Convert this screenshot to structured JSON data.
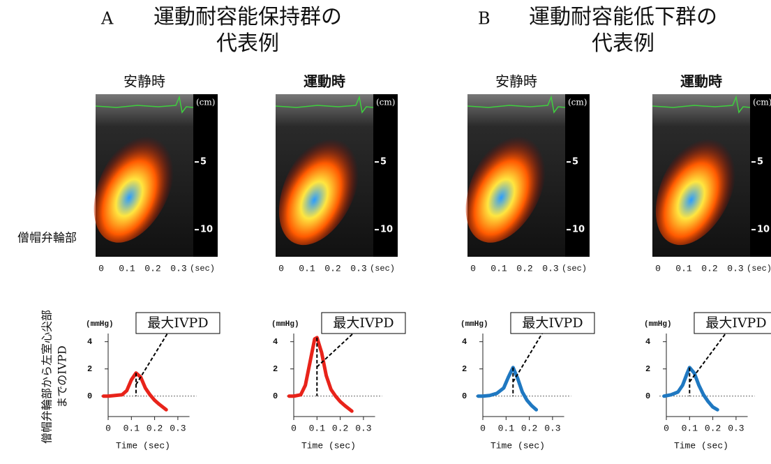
{
  "groups": [
    {
      "letter": "A",
      "title": "運動耐容能保持群の",
      "title2": "代表例"
    },
    {
      "letter": "B",
      "title": "運動耐容能低下群の",
      "title2": "代表例"
    }
  ],
  "row_label": "僧帽弁輪部",
  "side_label": [
    "僧帽弁輪部から左室心尖部",
    "までのIVPD"
  ],
  "panels": [
    {
      "label": "安静時",
      "depth_unit": "(cm)",
      "depth_ticks": [
        5,
        10
      ],
      "time_ticks": [
        0,
        0.1,
        0.2,
        0.3
      ],
      "time_unit": "(sec)"
    },
    {
      "label": "運動時",
      "depth_unit": "(cm)",
      "depth_ticks": [
        5,
        10
      ],
      "time_ticks": [
        0,
        0.1,
        0.2,
        0.3
      ],
      "time_unit": "(sec)"
    },
    {
      "label": "安静時",
      "depth_unit": "(cm)",
      "depth_ticks": [
        5,
        10
      ],
      "time_ticks": [
        0,
        0.1,
        0.2,
        0.3
      ],
      "time_unit": "(sec)"
    },
    {
      "label": "運動時",
      "depth_unit": "(cm)",
      "depth_ticks": [
        5,
        10
      ],
      "time_ticks": [
        0,
        0.1,
        0.2,
        0.3
      ],
      "time_unit": "(sec)"
    }
  ],
  "chart_data": [
    {
      "type": "line",
      "y_unit": "(mmHg)",
      "annotation": "最大IVPD",
      "xlabel": "Time (sec)",
      "x": [
        -0.02,
        0,
        0.03,
        0.06,
        0.08,
        0.1,
        0.12,
        0.14,
        0.16,
        0.18,
        0.2,
        0.22,
        0.25
      ],
      "series": [
        {
          "color": "#e8231a",
          "values": [
            0,
            0,
            0.05,
            0.1,
            0.4,
            1.2,
            1.7,
            1.4,
            0.6,
            0.1,
            -0.3,
            -0.6,
            -1.0
          ]
        }
      ],
      "xlim": [
        -0.03,
        0.38
      ],
      "ylim": [
        -1.5,
        4.6
      ],
      "xticks": [
        0,
        0.1,
        0.2,
        0.3
      ],
      "yticks": [
        0,
        2,
        4
      ]
    },
    {
      "type": "line",
      "y_unit": "(mmHg)",
      "annotation": "最大IVPD",
      "xlabel": "Time (sec)",
      "x": [
        -0.02,
        0,
        0.03,
        0.05,
        0.07,
        0.09,
        0.1,
        0.12,
        0.14,
        0.16,
        0.18,
        0.2,
        0.22,
        0.25
      ],
      "series": [
        {
          "color": "#e8231a",
          "values": [
            0,
            0,
            0.1,
            0.8,
            2.5,
            4.2,
            4.3,
            3.2,
            1.5,
            0.5,
            0,
            -0.4,
            -0.7,
            -1.1
          ]
        }
      ],
      "xlim": [
        -0.03,
        0.38
      ],
      "ylim": [
        -1.5,
        4.6
      ],
      "xticks": [
        0,
        0.1,
        0.2,
        0.3
      ],
      "yticks": [
        0,
        2,
        4
      ]
    },
    {
      "type": "line",
      "y_unit": "(mmHg)",
      "annotation": "最大IVPD",
      "xlabel": "Time (sec)",
      "x": [
        -0.02,
        0,
        0.03,
        0.06,
        0.09,
        0.11,
        0.13,
        0.15,
        0.17,
        0.19,
        0.21,
        0.23
      ],
      "series": [
        {
          "color": "#1f78c1",
          "values": [
            0,
            0,
            0.05,
            0.2,
            0.6,
            1.4,
            2.1,
            1.3,
            0.3,
            -0.3,
            -0.7,
            -1.0
          ]
        }
      ],
      "xlim": [
        -0.03,
        0.38
      ],
      "ylim": [
        -1.5,
        4.6
      ],
      "xticks": [
        0,
        0.1,
        0.2,
        0.3
      ],
      "yticks": [
        0,
        2,
        4
      ]
    },
    {
      "type": "line",
      "y_unit": "(mmHg)",
      "annotation": "最大IVPD",
      "xlabel": "Time (sec)",
      "x": [
        -0.01,
        0.02,
        0.05,
        0.07,
        0.09,
        0.1,
        0.12,
        0.14,
        0.16,
        0.18,
        0.2,
        0.22
      ],
      "series": [
        {
          "color": "#1f78c1",
          "values": [
            0,
            0.1,
            0.3,
            0.8,
            1.7,
            2.1,
            1.7,
            0.8,
            0.1,
            -0.4,
            -0.8,
            -1.0
          ]
        }
      ],
      "xlim": [
        -0.03,
        0.38
      ],
      "ylim": [
        -1.5,
        4.6
      ],
      "xticks": [
        0,
        0.1,
        0.2,
        0.3
      ],
      "yticks": [
        0,
        2,
        4
      ]
    }
  ]
}
